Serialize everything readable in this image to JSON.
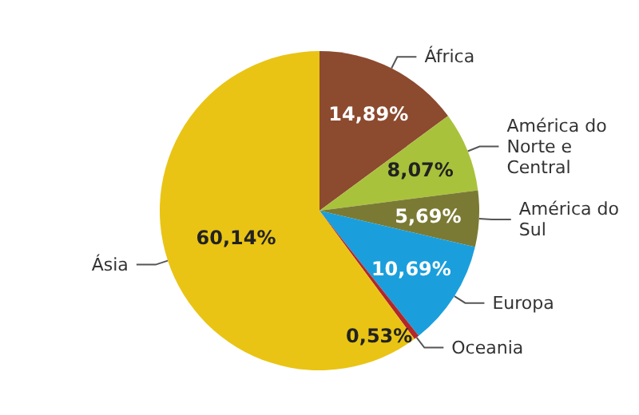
{
  "chart_data": {
    "type": "pie",
    "categories": [
      "África",
      "América do Norte e Central",
      "América do Sul",
      "Europa",
      "Oceania",
      "Ásia"
    ],
    "values": [
      14.89,
      8.07,
      5.69,
      10.69,
      0.53,
      60.14
    ],
    "value_labels": [
      "14,89%",
      "8,07%",
      "5,69%",
      "10,69%",
      "0,53%",
      "60,14%"
    ],
    "colors": [
      "#8c4a2f",
      "#a9c23c",
      "#7b7a34",
      "#1a9fdc",
      "#b3262a",
      "#e9c414"
    ],
    "legend": false
  }
}
